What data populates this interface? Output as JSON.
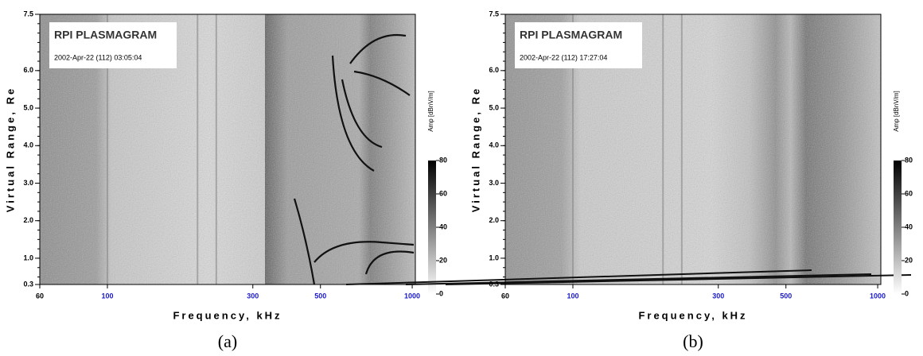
{
  "chart_data": [
    {
      "type": "plasmagram",
      "title": "RPI PLASMAGRAM",
      "subtitle": "2002-Apr-22 (112) 03:05:04",
      "x_label": "Frequency, kHz",
      "y_label": "Virtual Range, Re",
      "colorbar_label": "Amp [dBnV/m]",
      "caption": "(a)",
      "x_log": true,
      "xlim": [
        60,
        1024
      ],
      "xticks": [
        60,
        100,
        300,
        500,
        1000
      ],
      "xtick_colors": [
        "#000000",
        "#1a1acc",
        "#1a1acc",
        "#1a1acc",
        "#1a1acc"
      ],
      "ylim": [
        0.3,
        7.5
      ],
      "yticks": [
        {
          "value": 0.3,
          "label": "0.3"
        },
        {
          "value": 1,
          "label": "1.0"
        },
        {
          "value": 2,
          "label": "2.0"
        },
        {
          "value": 3,
          "label": "3.0"
        },
        {
          "value": 4,
          "label": "4.0"
        },
        {
          "value": 5,
          "label": "5.0"
        },
        {
          "value": 6,
          "label": "6.0"
        },
        {
          "value": 7.5,
          "label": "7.5"
        }
      ],
      "clim": [
        0,
        80
      ],
      "cticks": [
        0,
        20,
        40,
        60,
        80
      ]
    },
    {
      "type": "plasmagram",
      "title": "RPI PLASMAGRAM",
      "subtitle": "2002-Apr-22 (112) 17:27:04",
      "x_label": "Frequency, kHz",
      "y_label": "Virtual Range, Re",
      "colorbar_label": "Amp [dBnV/m]",
      "caption": "(b)",
      "x_log": true,
      "xlim": [
        60,
        1024
      ],
      "xticks": [
        60,
        100,
        300,
        500,
        1000
      ],
      "xtick_colors": [
        "#000000",
        "#1a1acc",
        "#1a1acc",
        "#1a1acc",
        "#1a1acc"
      ],
      "ylim": [
        0.3,
        7.5
      ],
      "yticks": [
        {
          "value": 0.3,
          "label": "0.3"
        },
        {
          "value": 1,
          "label": "1.0"
        },
        {
          "value": 2,
          "label": "2.0"
        },
        {
          "value": 3,
          "label": "3.0"
        },
        {
          "value": 4,
          "label": "4.0"
        },
        {
          "value": 5,
          "label": "5.0"
        },
        {
          "value": 6,
          "label": "6.0"
        },
        {
          "value": 7.5,
          "label": "7.5"
        }
      ],
      "clim": [
        0,
        80
      ],
      "cticks": [
        0,
        20,
        40,
        60,
        80
      ]
    }
  ]
}
